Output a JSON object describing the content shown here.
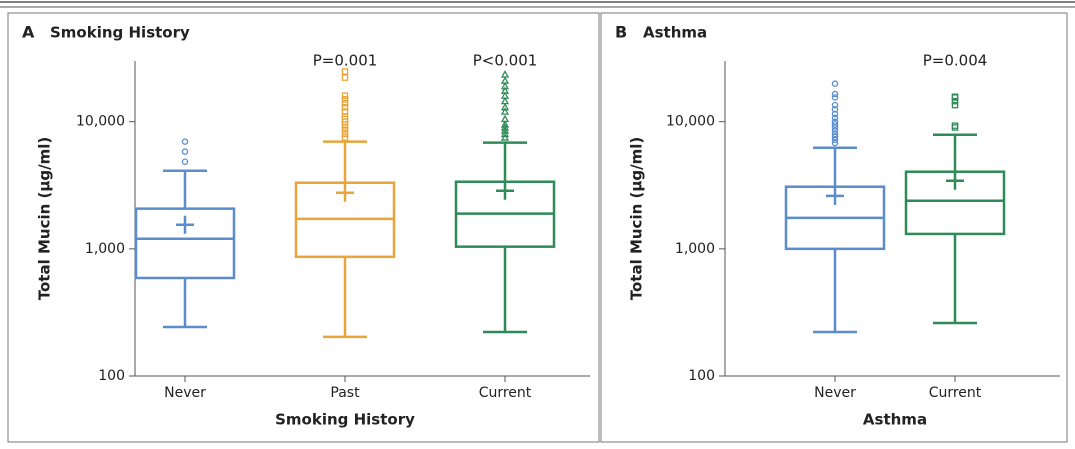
{
  "chart_data": [
    {
      "type": "box",
      "panel_label": "A",
      "title": "Smoking History",
      "x_label": "Smoking History",
      "y_label": "Total Mucin (µg/ml)",
      "log_scale": true,
      "ylim": [
        100,
        30000
      ],
      "yticks": [
        100,
        {
          "value": 1000,
          "label": "1,000"
        },
        {
          "value": 10000,
          "label": "10,000"
        }
      ],
      "categories": [
        "Never",
        "Past",
        "Current"
      ],
      "colors": [
        "#5b8ccc",
        "#e8a53a",
        "#2e8b57"
      ],
      "markers": [
        "circle",
        "square",
        "triangle"
      ],
      "whisker_low": [
        243,
        203,
        222
      ],
      "q1": [
        590,
        865,
        1040
      ],
      "median": [
        1200,
        1720,
        1890
      ],
      "mean": [
        1545,
        2760,
        2860
      ],
      "q3": [
        2070,
        3310,
        3370
      ],
      "whisker_high": [
        4110,
        6970,
        6840
      ],
      "outliers": [
        [
          4840,
          5810,
          6970
        ],
        [
          7500,
          8000,
          8500,
          9000,
          9500,
          10000,
          10500,
          11000,
          12000,
          13000,
          14000,
          15000,
          16000,
          22200,
          24800
        ],
        [
          7500,
          8000,
          8500,
          9000,
          9500,
          10500,
          12000,
          13000,
          14500,
          16000,
          17500,
          19000,
          21000,
          23500
        ]
      ],
      "annotations": [
        null,
        "P=0.001",
        "P<0.001"
      ]
    },
    {
      "type": "box",
      "panel_label": "B",
      "title": "Asthma",
      "x_label": "Asthma",
      "y_label": "Total Mucin (µg/ml)",
      "log_scale": true,
      "ylim": [
        100,
        30000
      ],
      "yticks": [
        100,
        {
          "value": 1000,
          "label": "1,000"
        },
        {
          "value": 10000,
          "label": "10,000"
        }
      ],
      "categories": [
        "Never",
        "Current"
      ],
      "colors": [
        "#5b8ccc",
        "#2e8b57"
      ],
      "markers": [
        "circle",
        "square"
      ],
      "whisker_low": [
        222,
        261
      ],
      "q1": [
        1000,
        1310
      ],
      "median": [
        1750,
        2390
      ],
      "mean": [
        2610,
        3430
      ],
      "q3": [
        3080,
        4040
      ],
      "whisker_high": [
        6240,
        7900
      ],
      "outliers": [
        [
          6800,
          7200,
          7600,
          8000,
          8500,
          9000,
          9500,
          10000,
          10700,
          11500,
          12500,
          13500,
          15500,
          16500,
          19900
        ],
        [
          9000,
          9300,
          13500,
          14500,
          15500,
          15700
        ]
      ],
      "annotations": [
        null,
        "P=0.004"
      ]
    }
  ]
}
